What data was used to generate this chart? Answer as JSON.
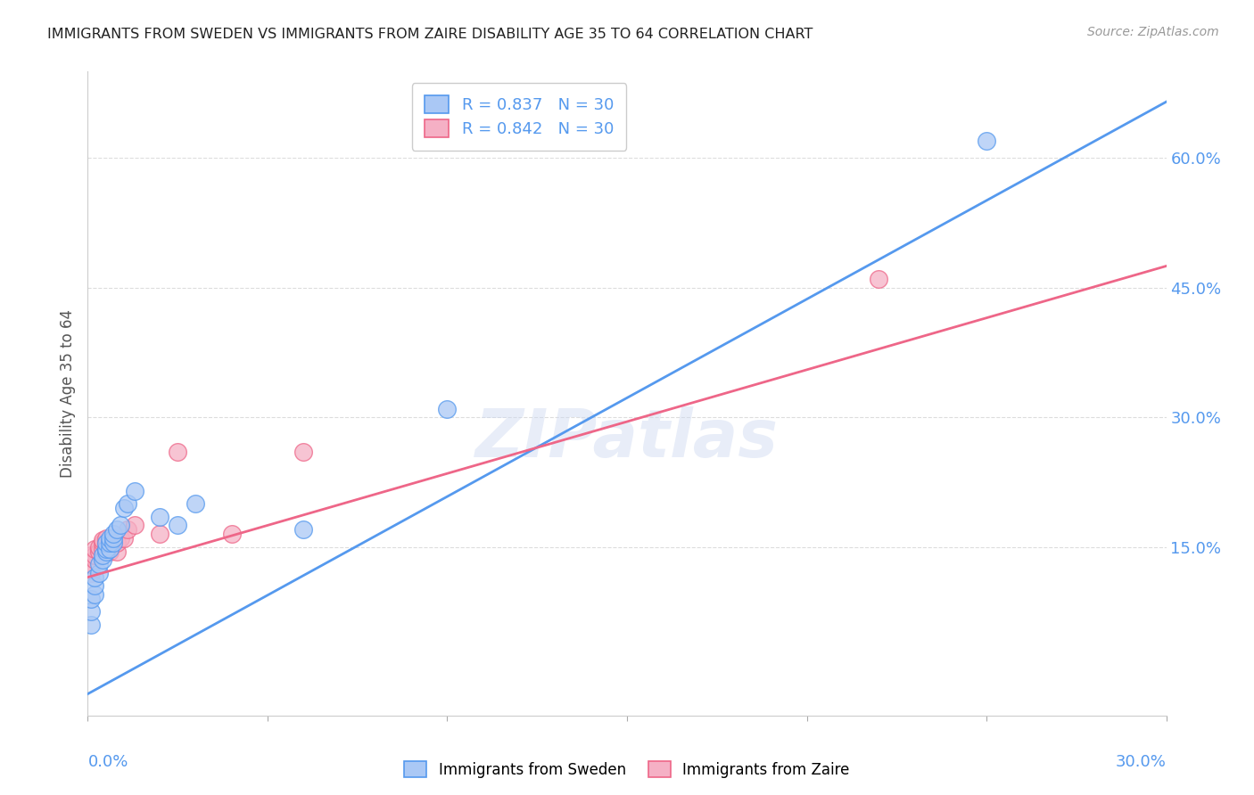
{
  "title": "IMMIGRANTS FROM SWEDEN VS IMMIGRANTS FROM ZAIRE DISABILITY AGE 35 TO 64 CORRELATION CHART",
  "source": "Source: ZipAtlas.com",
  "ylabel": "Disability Age 35 to 64",
  "right_yticks": [
    0.15,
    0.3,
    0.45,
    0.6
  ],
  "right_yticklabels": [
    "15.0%",
    "30.0%",
    "45.0%",
    "60.0%"
  ],
  "watermark": "ZIPatlas",
  "legend_sweden": "R = 0.837   N = 30",
  "legend_zaire": "R = 0.842   N = 30",
  "legend_label_sweden": "Immigrants from Sweden",
  "legend_label_zaire": "Immigrants from Zaire",
  "sweden_color": "#aac8f5",
  "sweden_line_color": "#5599ee",
  "zaire_color": "#f5b0c5",
  "zaire_line_color": "#ee6688",
  "sweden_scatter_x": [
    0.001,
    0.001,
    0.001,
    0.002,
    0.002,
    0.002,
    0.003,
    0.003,
    0.004,
    0.004,
    0.005,
    0.005,
    0.005,
    0.006,
    0.006,
    0.006,
    0.007,
    0.007,
    0.007,
    0.008,
    0.009,
    0.01,
    0.011,
    0.013,
    0.02,
    0.025,
    0.03,
    0.06,
    0.1,
    0.25
  ],
  "sweden_scatter_y": [
    0.06,
    0.075,
    0.09,
    0.095,
    0.105,
    0.115,
    0.12,
    0.13,
    0.135,
    0.14,
    0.145,
    0.148,
    0.155,
    0.148,
    0.155,
    0.16,
    0.155,
    0.16,
    0.165,
    0.17,
    0.175,
    0.195,
    0.2,
    0.215,
    0.185,
    0.175,
    0.2,
    0.17,
    0.31,
    0.62
  ],
  "zaire_scatter_x": [
    0.001,
    0.001,
    0.001,
    0.002,
    0.002,
    0.002,
    0.003,
    0.003,
    0.004,
    0.004,
    0.004,
    0.005,
    0.005,
    0.005,
    0.006,
    0.006,
    0.006,
    0.007,
    0.007,
    0.008,
    0.008,
    0.009,
    0.01,
    0.011,
    0.013,
    0.02,
    0.025,
    0.04,
    0.06,
    0.22
  ],
  "zaire_scatter_y": [
    0.12,
    0.13,
    0.14,
    0.135,
    0.14,
    0.148,
    0.145,
    0.15,
    0.148,
    0.155,
    0.158,
    0.148,
    0.155,
    0.16,
    0.145,
    0.15,
    0.155,
    0.155,
    0.16,
    0.145,
    0.155,
    0.16,
    0.16,
    0.17,
    0.175,
    0.165,
    0.26,
    0.165,
    0.26,
    0.46
  ],
  "sweden_line_x": [
    0.0,
    0.3
  ],
  "sweden_line_y": [
    -0.02,
    0.665
  ],
  "zaire_line_x": [
    0.0,
    0.3
  ],
  "zaire_line_y": [
    0.115,
    0.475
  ],
  "xlim": [
    0.0,
    0.3
  ],
  "ylim": [
    -0.045,
    0.7
  ],
  "figsize": [
    14.06,
    8.92
  ],
  "dpi": 100
}
